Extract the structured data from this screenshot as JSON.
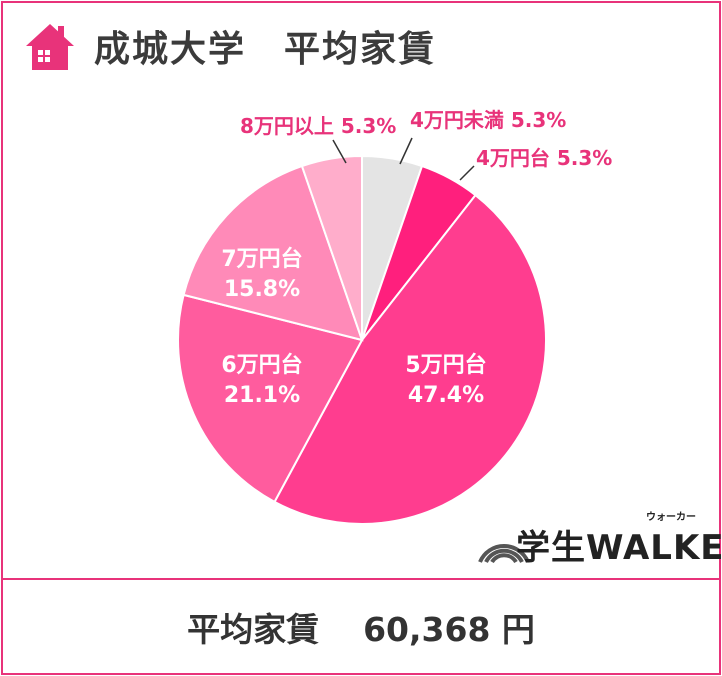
{
  "header": {
    "title": "成城大学　平均家賃",
    "icon": "house-icon"
  },
  "colors": {
    "accent": "#e8337a",
    "title_text": "#3b3b3b"
  },
  "chart_data": {
    "type": "pie",
    "title": "成城大学　平均家賃",
    "start_angle_deg": 0,
    "direction": "clockwise",
    "slices": [
      {
        "label": "4万円未満",
        "value": 5.3,
        "value_label": "5.3%",
        "color": "#e4e4e4"
      },
      {
        "label": "4万円台",
        "value": 5.3,
        "value_label": "5.3%",
        "color": "#ff1f7d"
      },
      {
        "label": "5万円台",
        "value": 47.4,
        "value_label": "47.4%",
        "color": "#ff3d8f"
      },
      {
        "label": "6万円台",
        "value": 21.1,
        "value_label": "21.1%",
        "color": "#ff5c9e"
      },
      {
        "label": "7万円台",
        "value": 15.8,
        "value_label": "15.8%",
        "color": "#ff8ab8"
      },
      {
        "label": "8万円以上",
        "value": 5.3,
        "value_label": "5.3%",
        "color": "#ffadcb"
      }
    ]
  },
  "footer": {
    "label": "平均家賃",
    "value": "60,368 円"
  },
  "logo": {
    "text": "学生WALKER",
    "kana": "ウォーカー"
  }
}
